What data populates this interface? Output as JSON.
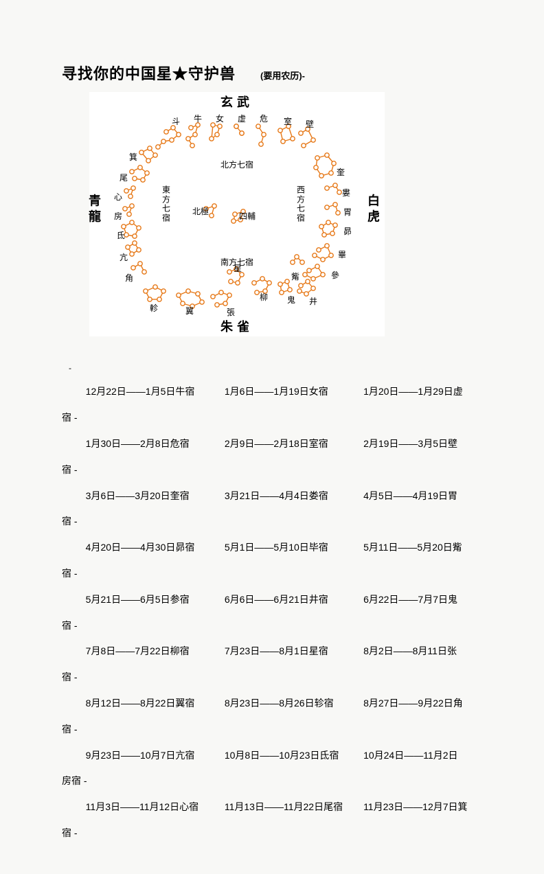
{
  "title": "寻找你的中国星★守护兽",
  "subtitle": "(要用农历)-",
  "cardinals": {
    "north": "玄武",
    "south": "朱雀",
    "east": "青龍",
    "west": "白虎"
  },
  "direction_labels": {
    "north": "北方七宿",
    "south": "南方七宿",
    "east": "東方七宿",
    "west": "西方七宿"
  },
  "center_labels": {
    "beiji": "北極",
    "sifu": "四輔"
  },
  "mansions": {
    "north": [
      "斗",
      "牛",
      "女",
      "虚",
      "危",
      "室",
      "壁"
    ],
    "west_side": [
      "奎",
      "婁",
      "胃",
      "昴",
      "畢",
      "參"
    ],
    "south_side": [
      "井",
      "鬼",
      "柳",
      "星",
      "張",
      "翼",
      "軫"
    ],
    "east_side": [
      "角",
      "亢",
      "氐",
      "房",
      "心",
      "尾",
      "箕"
    ],
    "zi": "觜"
  },
  "diagram": {
    "star_color": "#e67817",
    "star_fill": "#ffffff",
    "line_color": "#e67817",
    "line_width": 1.4,
    "star_radius": 3.2,
    "background": "#ffffff"
  },
  "date_rows": [
    [
      {
        "text": "12月22日——1月5日牛宿"
      },
      {
        "text": "1月6日——1月19日女宿"
      },
      {
        "text": "1月20日——1月29日虚"
      }
    ],
    [
      {
        "text": "1月30日——2月8日危宿"
      },
      {
        "text": "2月9日——2月18日室宿"
      },
      {
        "text": "2月19日——3月5日壁"
      }
    ],
    [
      {
        "text": "3月6日——3月20日奎宿"
      },
      {
        "text": "3月21日——4月4日娄宿"
      },
      {
        "text": "4月5日——4月19日胃"
      }
    ],
    [
      {
        "text": "4月20日——4月30日昴宿"
      },
      {
        "text": "5月1日——5月10日毕宿"
      },
      {
        "text": "5月11日——5月20日觜"
      }
    ],
    [
      {
        "text": "5月21日——6月5日参宿"
      },
      {
        "text": "6月6日——6月21日井宿"
      },
      {
        "text": "6月22日——7月7日鬼"
      }
    ],
    [
      {
        "text": "7月8日——7月22日柳宿"
      },
      {
        "text": "7月23日——8月1日星宿"
      },
      {
        "text": "8月2日——8月11日张"
      }
    ],
    [
      {
        "text": "8月12日——8月22日翼宿"
      },
      {
        "text": "8月23日——8月26日轸宿"
      },
      {
        "text": "8月27日——9月22日角"
      }
    ],
    [
      {
        "text": "9月23日——10月7日亢宿"
      },
      {
        "text": "10月8日——10月23日氐宿"
      },
      {
        "text": "10月24日——11月2日"
      }
    ],
    [
      {
        "text": "11月3日——11月12日心宿"
      },
      {
        "text": "11月13日——11月22日尾宿"
      },
      {
        "text": "11月23日——12月7日箕"
      }
    ]
  ],
  "trail_labels": [
    "宿 -",
    "宿 -",
    "宿 -",
    "宿 -",
    "宿 -",
    "宿 -",
    "宿 -",
    "房宿 -",
    "宿 -"
  ],
  "first_dash": "-"
}
